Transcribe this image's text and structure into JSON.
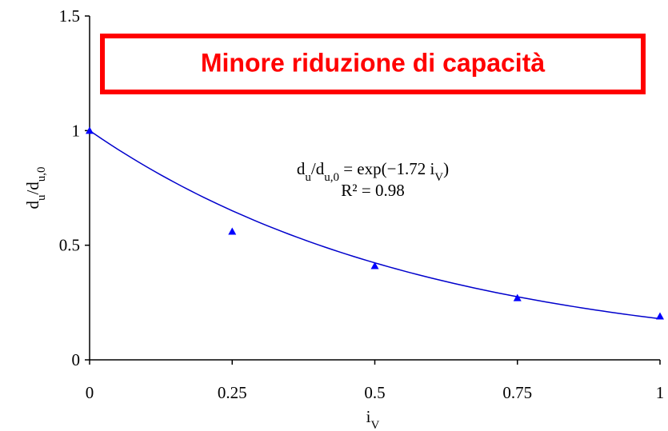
{
  "chart_data": {
    "type": "scatter",
    "title": "Minore riduzione di capacità",
    "xlabel": [
      "i",
      "V"
    ],
    "ylabel": [
      "d",
      "u",
      "/d",
      "u,0"
    ],
    "equation": [
      "d",
      "u",
      "/d",
      "u,0",
      " = exp(−1.72 i",
      "V",
      ")"
    ],
    "r2_label": "R² = 0.98",
    "x": [
      0,
      0.25,
      0.5,
      0.75,
      1
    ],
    "series": [
      {
        "name": "d",
        "color": "#0000ff",
        "values": [
          1.0,
          0.56,
          0.41,
          0.27,
          0.19
        ]
      }
    ],
    "trendline": {
      "type": "exponential",
      "coefficient": -1.72,
      "color": "#0000cc"
    },
    "xlim": [
      0,
      1
    ],
    "xticks": [
      0,
      0.25,
      0.5,
      0.75,
      1
    ],
    "ylim": [
      0,
      1.5
    ],
    "yticks": [
      0,
      0.5,
      1,
      1.5
    ],
    "grid": false,
    "title_color": "#ff0000"
  }
}
